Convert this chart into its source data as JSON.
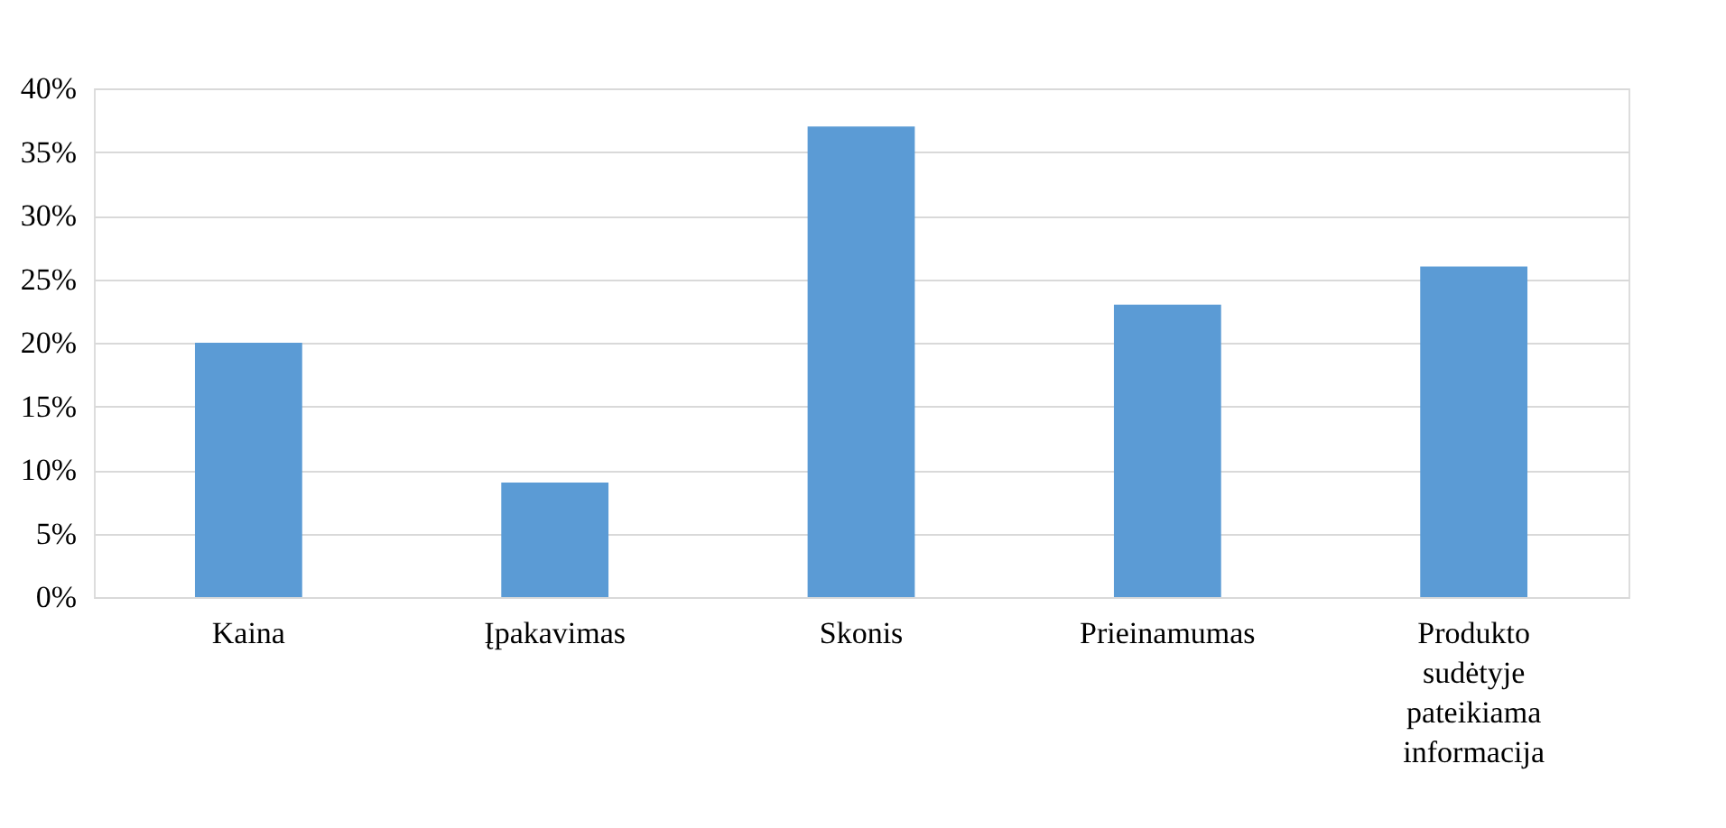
{
  "chart_data": {
    "type": "bar",
    "categories": [
      "Kaina",
      "Įpakavimas",
      "Skonis",
      "Prieinamumas",
      "Produkto sudėtyje pateikiama informacija"
    ],
    "values": [
      20,
      9,
      37,
      23,
      26
    ],
    "color": "#5b9bd5",
    "ylim": [
      0,
      40
    ],
    "yticks": [
      {
        "value": 0,
        "label": "0%"
      },
      {
        "value": 5,
        "label": "5%"
      },
      {
        "value": 10,
        "label": "10%"
      },
      {
        "value": 15,
        "label": "15%"
      },
      {
        "value": 20,
        "label": "20%"
      },
      {
        "value": 25,
        "label": "25%"
      },
      {
        "value": 30,
        "label": "30%"
      },
      {
        "value": 35,
        "label": "35%"
      },
      {
        "value": 40,
        "label": "40%"
      }
    ],
    "grid": "y"
  }
}
